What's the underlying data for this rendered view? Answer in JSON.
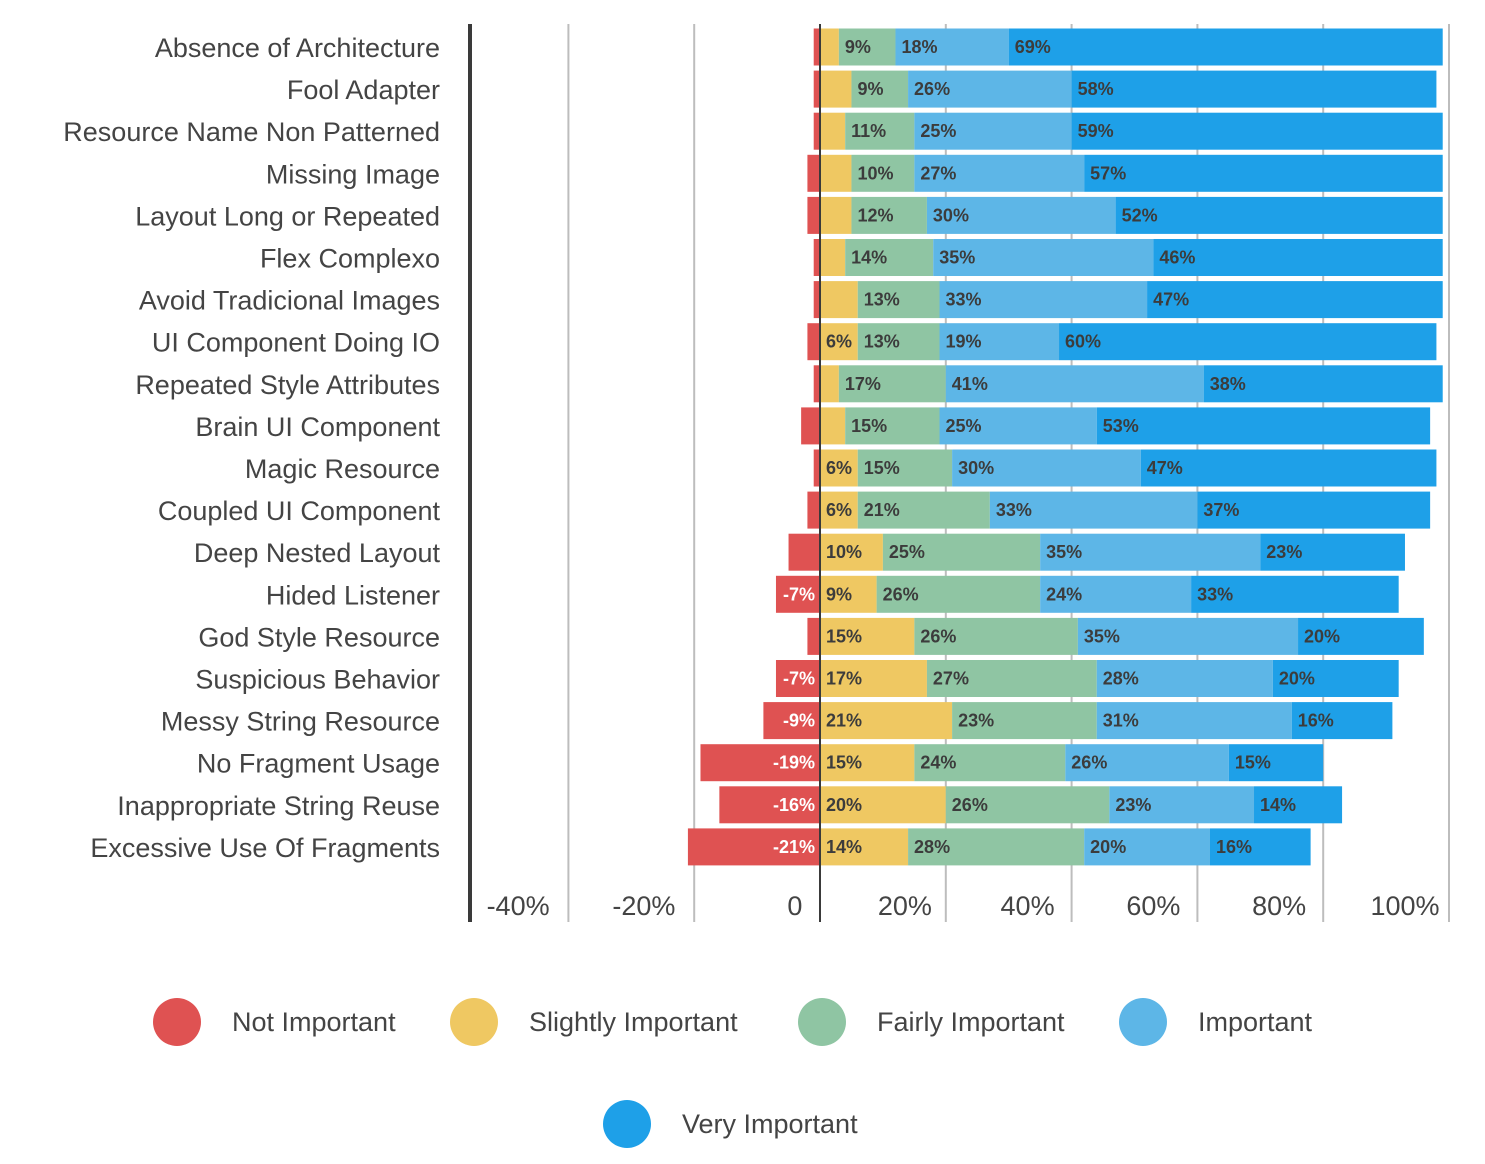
{
  "chart_data": {
    "type": "bar",
    "orientation": "horizontal",
    "stacked": true,
    "diverging": true,
    "categories": [
      "Absence of Architecture",
      "Fool Adapter",
      "Resource Name Non Patterned",
      "Missing Image",
      "Layout Long or Repeated",
      "Flex Complexo",
      "Avoid Tradicional Images",
      "UI Component Doing IO",
      "Repeated Style Attributes",
      "Brain UI Component",
      "Magic Resource",
      "Coupled UI Component",
      "Deep Nested Layout",
      "Hided Listener",
      "God Style Resource",
      "Suspicious Behavior",
      "Messy String Resource",
      "No Fragment Usage",
      "Inappropriate String Reuse",
      "Excessive Use Of Fragments"
    ],
    "series": [
      {
        "name": "Not Important",
        "color": "#DF5252",
        "values": [
          -1,
          -1,
          -1,
          -2,
          -2,
          -1,
          -1,
          -2,
          -1,
          -3,
          -1,
          -2,
          -5,
          -7,
          -2,
          -7,
          -9,
          -19,
          -16,
          -21
        ],
        "labels": [
          "",
          "",
          "",
          "",
          "",
          "",
          "",
          "",
          "",
          "",
          "",
          "",
          "",
          "-7%",
          "",
          "-7%",
          "-9%",
          "-19%",
          "-16%",
          "-21%"
        ]
      },
      {
        "name": "Slightly Important",
        "color": "#EFC862",
        "values": [
          3,
          5,
          4,
          5,
          5,
          4,
          6,
          6,
          3,
          4,
          6,
          6,
          10,
          9,
          15,
          17,
          21,
          15,
          20,
          14
        ],
        "labels": [
          "",
          "",
          "",
          "",
          "",
          "",
          "",
          "6%",
          "",
          "",
          "6%",
          "6%",
          "10%",
          "9%",
          "15%",
          "17%",
          "21%",
          "15%",
          "20%",
          "14%"
        ]
      },
      {
        "name": "Fairly Important",
        "color": "#8FC5A3",
        "values": [
          9,
          9,
          11,
          10,
          12,
          14,
          13,
          13,
          17,
          15,
          15,
          21,
          25,
          26,
          26,
          27,
          23,
          24,
          26,
          28
        ],
        "labels": [
          "9%",
          "9%",
          "11%",
          "10%",
          "12%",
          "14%",
          "13%",
          "13%",
          "17%",
          "15%",
          "15%",
          "21%",
          "25%",
          "26%",
          "26%",
          "27%",
          "23%",
          "24%",
          "26%",
          "28%"
        ]
      },
      {
        "name": "Important",
        "color": "#5DB6E7",
        "values": [
          18,
          26,
          25,
          27,
          30,
          35,
          33,
          19,
          41,
          25,
          30,
          33,
          35,
          24,
          35,
          28,
          31,
          26,
          23,
          20
        ],
        "labels": [
          "18%",
          "26%",
          "25%",
          "27%",
          "30%",
          "35%",
          "33%",
          "19%",
          "41%",
          "25%",
          "30%",
          "33%",
          "35%",
          "24%",
          "35%",
          "28%",
          "31%",
          "26%",
          "23%",
          "20%"
        ]
      },
      {
        "name": "Very Important",
        "color": "#1EA0E8",
        "values": [
          69,
          58,
          59,
          57,
          52,
          46,
          47,
          60,
          38,
          53,
          47,
          37,
          23,
          33,
          20,
          20,
          16,
          15,
          14,
          16
        ],
        "labels": [
          "69%",
          "58%",
          "59%",
          "57%",
          "52%",
          "46%",
          "47%",
          "60%",
          "38%",
          "53%",
          "47%",
          "37%",
          "23%",
          "33%",
          "20%",
          "20%",
          "16%",
          "15%",
          "14%",
          "16%"
        ]
      }
    ],
    "x_ticks": [
      "-40%",
      "-20%",
      "0",
      "20%",
      "40%",
      "60%",
      "80%",
      "100%"
    ],
    "xlim": [
      -55,
      100
    ],
    "grid": true,
    "legend_position": "bottom",
    "title": "",
    "xlabel": "",
    "ylabel": ""
  }
}
